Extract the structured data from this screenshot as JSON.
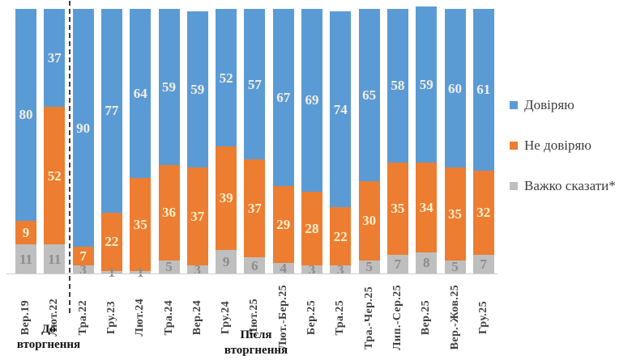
{
  "legend": [
    {
      "label": "Довіряю",
      "color": "#5B9BD5"
    },
    {
      "label": "Не довіряю",
      "color": "#ED7D31"
    },
    {
      "label": "Важко сказати*",
      "color": "#BFBFBF"
    }
  ],
  "groups": {
    "before": "До\nвторгнення",
    "after": "Після\nвторгнення"
  },
  "chart_data": {
    "type": "bar",
    "stacked": true,
    "units": "percent",
    "title": "",
    "xlabel": "",
    "ylabel": "",
    "ylim": [
      0,
      100
    ],
    "grid": false,
    "legend_position": "right",
    "divider_after_category": "Лют.22",
    "group_annotations": [
      {
        "text": "До вторгнення",
        "categories": [
          "Вер.19",
          "Лют.22"
        ]
      },
      {
        "text": "Після вторгнення",
        "categories": [
          "Тра.22",
          "Гру.25"
        ]
      }
    ],
    "categories": [
      "Вер.19",
      "Лют.22",
      "Тра.22",
      "Гру.23",
      "Лют.24",
      "Тра.24",
      "Вер.24",
      "Гру.24",
      "Лют.25",
      "Лют.-Бер.25",
      "Бер.25",
      "Тра.25",
      "Тра.-Чер.25",
      "Лип.-Сер.25",
      "Вер.25",
      "Вер.-Жов.25",
      "Гру.25"
    ],
    "series": [
      {
        "name": "Довіряю",
        "key": "trust",
        "color": "#5B9BD5",
        "label_color": "#F2EFE2",
        "values": [
          80,
          37,
          90,
          77,
          64,
          59,
          59,
          52,
          57,
          67,
          69,
          74,
          65,
          58,
          59,
          60,
          61
        ]
      },
      {
        "name": "Не довіряю",
        "key": "distrust",
        "color": "#ED7D31",
        "label_color": "#FBF0CD",
        "values": [
          9,
          52,
          7,
          22,
          35,
          36,
          37,
          39,
          37,
          29,
          28,
          22,
          30,
          35,
          34,
          35,
          32
        ]
      },
      {
        "name": "Важко сказати*",
        "key": "hard-to-say",
        "color": "#BFBFBF",
        "label_color": "#8C8C8C",
        "values": [
          11,
          11,
          3,
          1,
          1,
          5,
          3,
          9,
          6,
          4,
          3,
          3,
          5,
          7,
          8,
          5,
          7
        ]
      }
    ]
  }
}
